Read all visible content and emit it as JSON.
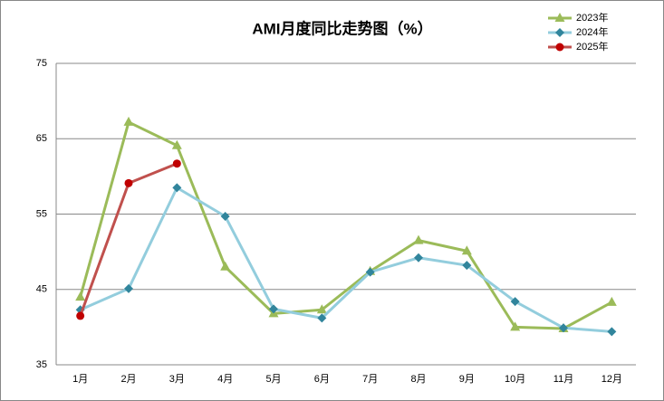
{
  "chart_data": {
    "type": "line",
    "title": "AMI月度同比走势图（%）",
    "categories": [
      "1月",
      "2月",
      "3月",
      "4月",
      "5月",
      "6月",
      "7月",
      "8月",
      "9月",
      "10月",
      "11月",
      "12月"
    ],
    "series": [
      {
        "name": "2023年",
        "color": "#9bbb59",
        "marker_color": "#9bbb59",
        "marker": "triangle",
        "values": [
          44.0,
          67.2,
          64.1,
          48.0,
          41.8,
          42.3,
          47.4,
          51.5,
          50.1,
          40.0,
          39.8,
          43.3
        ]
      },
      {
        "name": "2024年",
        "color": "#93cddd",
        "marker_color": "#31859c",
        "marker": "diamond",
        "values": [
          42.3,
          45.1,
          58.5,
          54.7,
          42.4,
          41.2,
          47.3,
          49.2,
          48.2,
          43.4,
          39.9,
          39.4
        ]
      },
      {
        "name": "2025年",
        "color": "#c0504d",
        "marker_color": "#c00000",
        "marker": "circle",
        "values": [
          41.5,
          59.1,
          61.7,
          null,
          null,
          null,
          null,
          null,
          null,
          null,
          null,
          null
        ]
      }
    ],
    "ylim": [
      35,
      75
    ],
    "yticks": [
      35,
      45,
      55,
      65,
      75
    ],
    "grid": true,
    "legend": "top-right"
  }
}
